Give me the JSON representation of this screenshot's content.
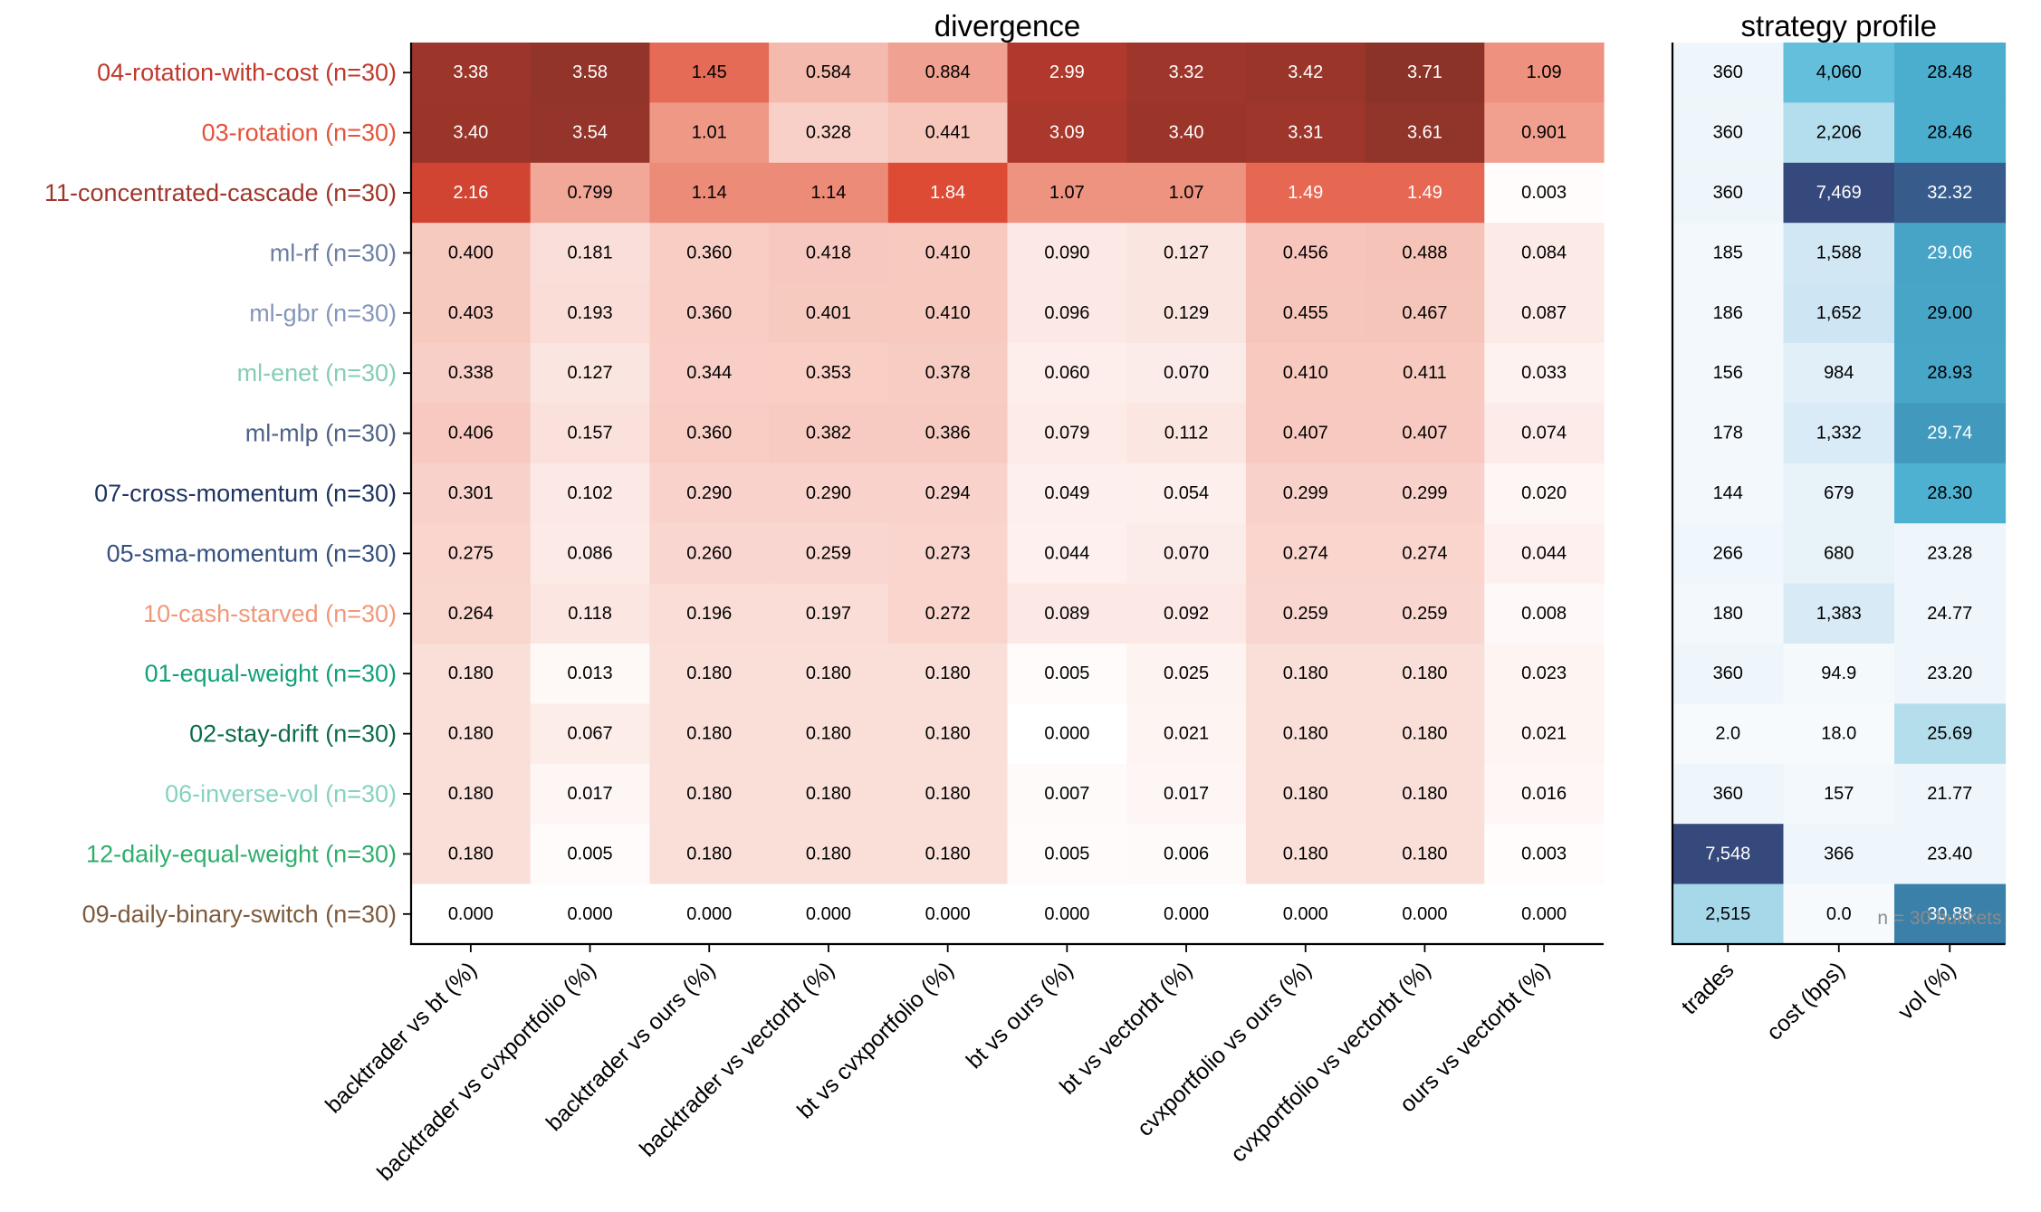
{
  "chart_data": {
    "type": "heatmap",
    "panels": [
      {
        "title": "divergence",
        "columns": [
          "backtrader vs bt (%)",
          "backtrader vs cvxportfolio (%)",
          "backtrader vs ours (%)",
          "backtrader vs vectorbt (%)",
          "bt vs cvxportfolio (%)",
          "bt vs ours (%)",
          "bt vs vectorbt (%)",
          "cvxportfolio vs ours (%)",
          "cvxportfolio vs vectorbt (%)",
          "ours vs vectorbt (%)"
        ],
        "color_scale": "reds",
        "values": [
          [
            3.38,
            3.58,
            1.45,
            0.584,
            0.884,
            2.99,
            3.32,
            3.42,
            3.71,
            1.09
          ],
          [
            3.4,
            3.54,
            1.01,
            0.328,
            0.441,
            3.09,
            3.4,
            3.31,
            3.61,
            0.901
          ],
          [
            2.16,
            0.799,
            1.14,
            1.14,
            1.84,
            1.07,
            1.07,
            1.49,
            1.49,
            0.003
          ],
          [
            0.4,
            0.181,
            0.36,
            0.418,
            0.41,
            0.09,
            0.127,
            0.456,
            0.488,
            0.084
          ],
          [
            0.403,
            0.193,
            0.36,
            0.401,
            0.41,
            0.096,
            0.129,
            0.455,
            0.467,
            0.087
          ],
          [
            0.338,
            0.127,
            0.344,
            0.353,
            0.378,
            0.06,
            0.07,
            0.41,
            0.411,
            0.033
          ],
          [
            0.406,
            0.157,
            0.36,
            0.382,
            0.386,
            0.079,
            0.112,
            0.407,
            0.407,
            0.074
          ],
          [
            0.301,
            0.102,
            0.29,
            0.29,
            0.294,
            0.049,
            0.054,
            0.299,
            0.299,
            0.02
          ],
          [
            0.275,
            0.086,
            0.26,
            0.259,
            0.273,
            0.044,
            0.07,
            0.274,
            0.274,
            0.044
          ],
          [
            0.264,
            0.118,
            0.196,
            0.197,
            0.272,
            0.089,
            0.092,
            0.259,
            0.259,
            0.008
          ],
          [
            0.18,
            0.013,
            0.18,
            0.18,
            0.18,
            0.005,
            0.025,
            0.18,
            0.18,
            0.023
          ],
          [
            0.18,
            0.067,
            0.18,
            0.18,
            0.18,
            0.0,
            0.021,
            0.18,
            0.18,
            0.021
          ],
          [
            0.18,
            0.017,
            0.18,
            0.18,
            0.18,
            0.007,
            0.017,
            0.18,
            0.18,
            0.016
          ],
          [
            0.18,
            0.005,
            0.18,
            0.18,
            0.18,
            0.005,
            0.006,
            0.18,
            0.18,
            0.003
          ],
          [
            0.0,
            0.0,
            0.0,
            0.0,
            0.0,
            0.0,
            0.0,
            0.0,
            0.0,
            0.0
          ]
        ],
        "labels": [
          [
            "3.38",
            "3.58",
            "1.45",
            "0.584",
            "0.884",
            "2.99",
            "3.32",
            "3.42",
            "3.71",
            "1.09"
          ],
          [
            "3.40",
            "3.54",
            "1.01",
            "0.328",
            "0.441",
            "3.09",
            "3.40",
            "3.31",
            "3.61",
            "0.901"
          ],
          [
            "2.16",
            "0.799",
            "1.14",
            "1.14",
            "1.84",
            "1.07",
            "1.07",
            "1.49",
            "1.49",
            "0.003"
          ],
          [
            "0.400",
            "0.181",
            "0.360",
            "0.418",
            "0.410",
            "0.090",
            "0.127",
            "0.456",
            "0.488",
            "0.084"
          ],
          [
            "0.403",
            "0.193",
            "0.360",
            "0.401",
            "0.410",
            "0.096",
            "0.129",
            "0.455",
            "0.467",
            "0.087"
          ],
          [
            "0.338",
            "0.127",
            "0.344",
            "0.353",
            "0.378",
            "0.060",
            "0.070",
            "0.410",
            "0.411",
            "0.033"
          ],
          [
            "0.406",
            "0.157",
            "0.360",
            "0.382",
            "0.386",
            "0.079",
            "0.112",
            "0.407",
            "0.407",
            "0.074"
          ],
          [
            "0.301",
            "0.102",
            "0.290",
            "0.290",
            "0.294",
            "0.049",
            "0.054",
            "0.299",
            "0.299",
            "0.020"
          ],
          [
            "0.275",
            "0.086",
            "0.260",
            "0.259",
            "0.273",
            "0.044",
            "0.070",
            "0.274",
            "0.274",
            "0.044"
          ],
          [
            "0.264",
            "0.118",
            "0.196",
            "0.197",
            "0.272",
            "0.089",
            "0.092",
            "0.259",
            "0.259",
            "0.008"
          ],
          [
            "0.180",
            "0.013",
            "0.180",
            "0.180",
            "0.180",
            "0.005",
            "0.025",
            "0.180",
            "0.180",
            "0.023"
          ],
          [
            "0.180",
            "0.067",
            "0.180",
            "0.180",
            "0.180",
            "0.000",
            "0.021",
            "0.180",
            "0.180",
            "0.021"
          ],
          [
            "0.180",
            "0.017",
            "0.180",
            "0.180",
            "0.180",
            "0.007",
            "0.017",
            "0.180",
            "0.180",
            "0.016"
          ],
          [
            "0.180",
            "0.005",
            "0.180",
            "0.180",
            "0.180",
            "0.005",
            "0.006",
            "0.180",
            "0.180",
            "0.003"
          ],
          [
            "0.000",
            "0.000",
            "0.000",
            "0.000",
            "0.000",
            "0.000",
            "0.000",
            "0.000",
            "0.000",
            "0.000"
          ]
        ]
      },
      {
        "title": "strategy profile",
        "columns": [
          "trades",
          "cost (bps)",
          "vol (%)"
        ],
        "color_scale": "blues",
        "values": [
          [
            360,
            4060,
            28.48
          ],
          [
            360,
            2206,
            28.46
          ],
          [
            360,
            7469,
            32.32
          ],
          [
            185,
            1588,
            29.06
          ],
          [
            186,
            1652,
            29.0
          ],
          [
            156,
            984,
            28.93
          ],
          [
            178,
            1332,
            29.74
          ],
          [
            144,
            679,
            28.3
          ],
          [
            266,
            680,
            23.28
          ],
          [
            180,
            1383,
            24.77
          ],
          [
            360,
            94.9,
            23.2
          ],
          [
            2.0,
            18.0,
            25.69
          ],
          [
            360,
            157,
            21.77
          ],
          [
            7548,
            366,
            23.4
          ],
          [
            2515,
            0.0,
            30.88
          ]
        ],
        "labels": [
          [
            "360",
            "4,060",
            "28.48"
          ],
          [
            "360",
            "2,206",
            "28.46"
          ],
          [
            "360",
            "7,469",
            "32.32"
          ],
          [
            "185",
            "1,588",
            "29.06"
          ],
          [
            "186",
            "1,652",
            "29.00"
          ],
          [
            "156",
            "984",
            "28.93"
          ],
          [
            "178",
            "1,332",
            "29.74"
          ],
          [
            "144",
            "679",
            "28.30"
          ],
          [
            "266",
            "680",
            "23.28"
          ],
          [
            "180",
            "1,383",
            "24.77"
          ],
          [
            "360",
            "94.9",
            "23.20"
          ],
          [
            "2.0",
            "18.0",
            "25.69"
          ],
          [
            "360",
            "157",
            "21.77"
          ],
          [
            "7,548",
            "366",
            "23.40"
          ],
          [
            "2,515",
            "0.0",
            "30.88"
          ]
        ],
        "footnote": "n = 30 buckets"
      }
    ],
    "rows": [
      {
        "label": "04-rotation-with-cost (n=30)",
        "color": "#c0392b"
      },
      {
        "label": "03-rotation (n=30)",
        "color": "#e5533b"
      },
      {
        "label": "11-concentrated-cascade (n=30)",
        "color": "#a0362b"
      },
      {
        "label": "ml-rf (n=30)",
        "color": "#6c7fa3"
      },
      {
        "label": "ml-gbr (n=30)",
        "color": "#8596bc"
      },
      {
        "label": "ml-enet (n=30)",
        "color": "#85cdb5"
      },
      {
        "label": "ml-mlp (n=30)",
        "color": "#4f6288"
      },
      {
        "label": "07-cross-momentum (n=30)",
        "color": "#1d3461"
      },
      {
        "label": "05-sma-momentum (n=30)",
        "color": "#34507e"
      },
      {
        "label": "10-cash-starved (n=30)",
        "color": "#f0987a"
      },
      {
        "label": "01-equal-weight (n=30)",
        "color": "#12a07a"
      },
      {
        "label": "02-stay-drift (n=30)",
        "color": "#0d6b4d"
      },
      {
        "label": "06-inverse-vol (n=30)",
        "color": "#86d2c0"
      },
      {
        "label": "12-daily-equal-weight (n=30)",
        "color": "#2eae6b"
      },
      {
        "label": "09-daily-binary-switch (n=30)",
        "color": "#7d5a3c"
      }
    ],
    "colors": {
      "reds": [
        "#ffffff",
        "#fbe3de",
        "#f6c2b7",
        "#ef9583",
        "#e04c36",
        "#c13b2e",
        "#8c3329"
      ],
      "blues": [
        "#f6fafd",
        "#d5e9f5",
        "#8fd0e4",
        "#52b8d8",
        "#3d93b8",
        "#35497c"
      ]
    }
  }
}
